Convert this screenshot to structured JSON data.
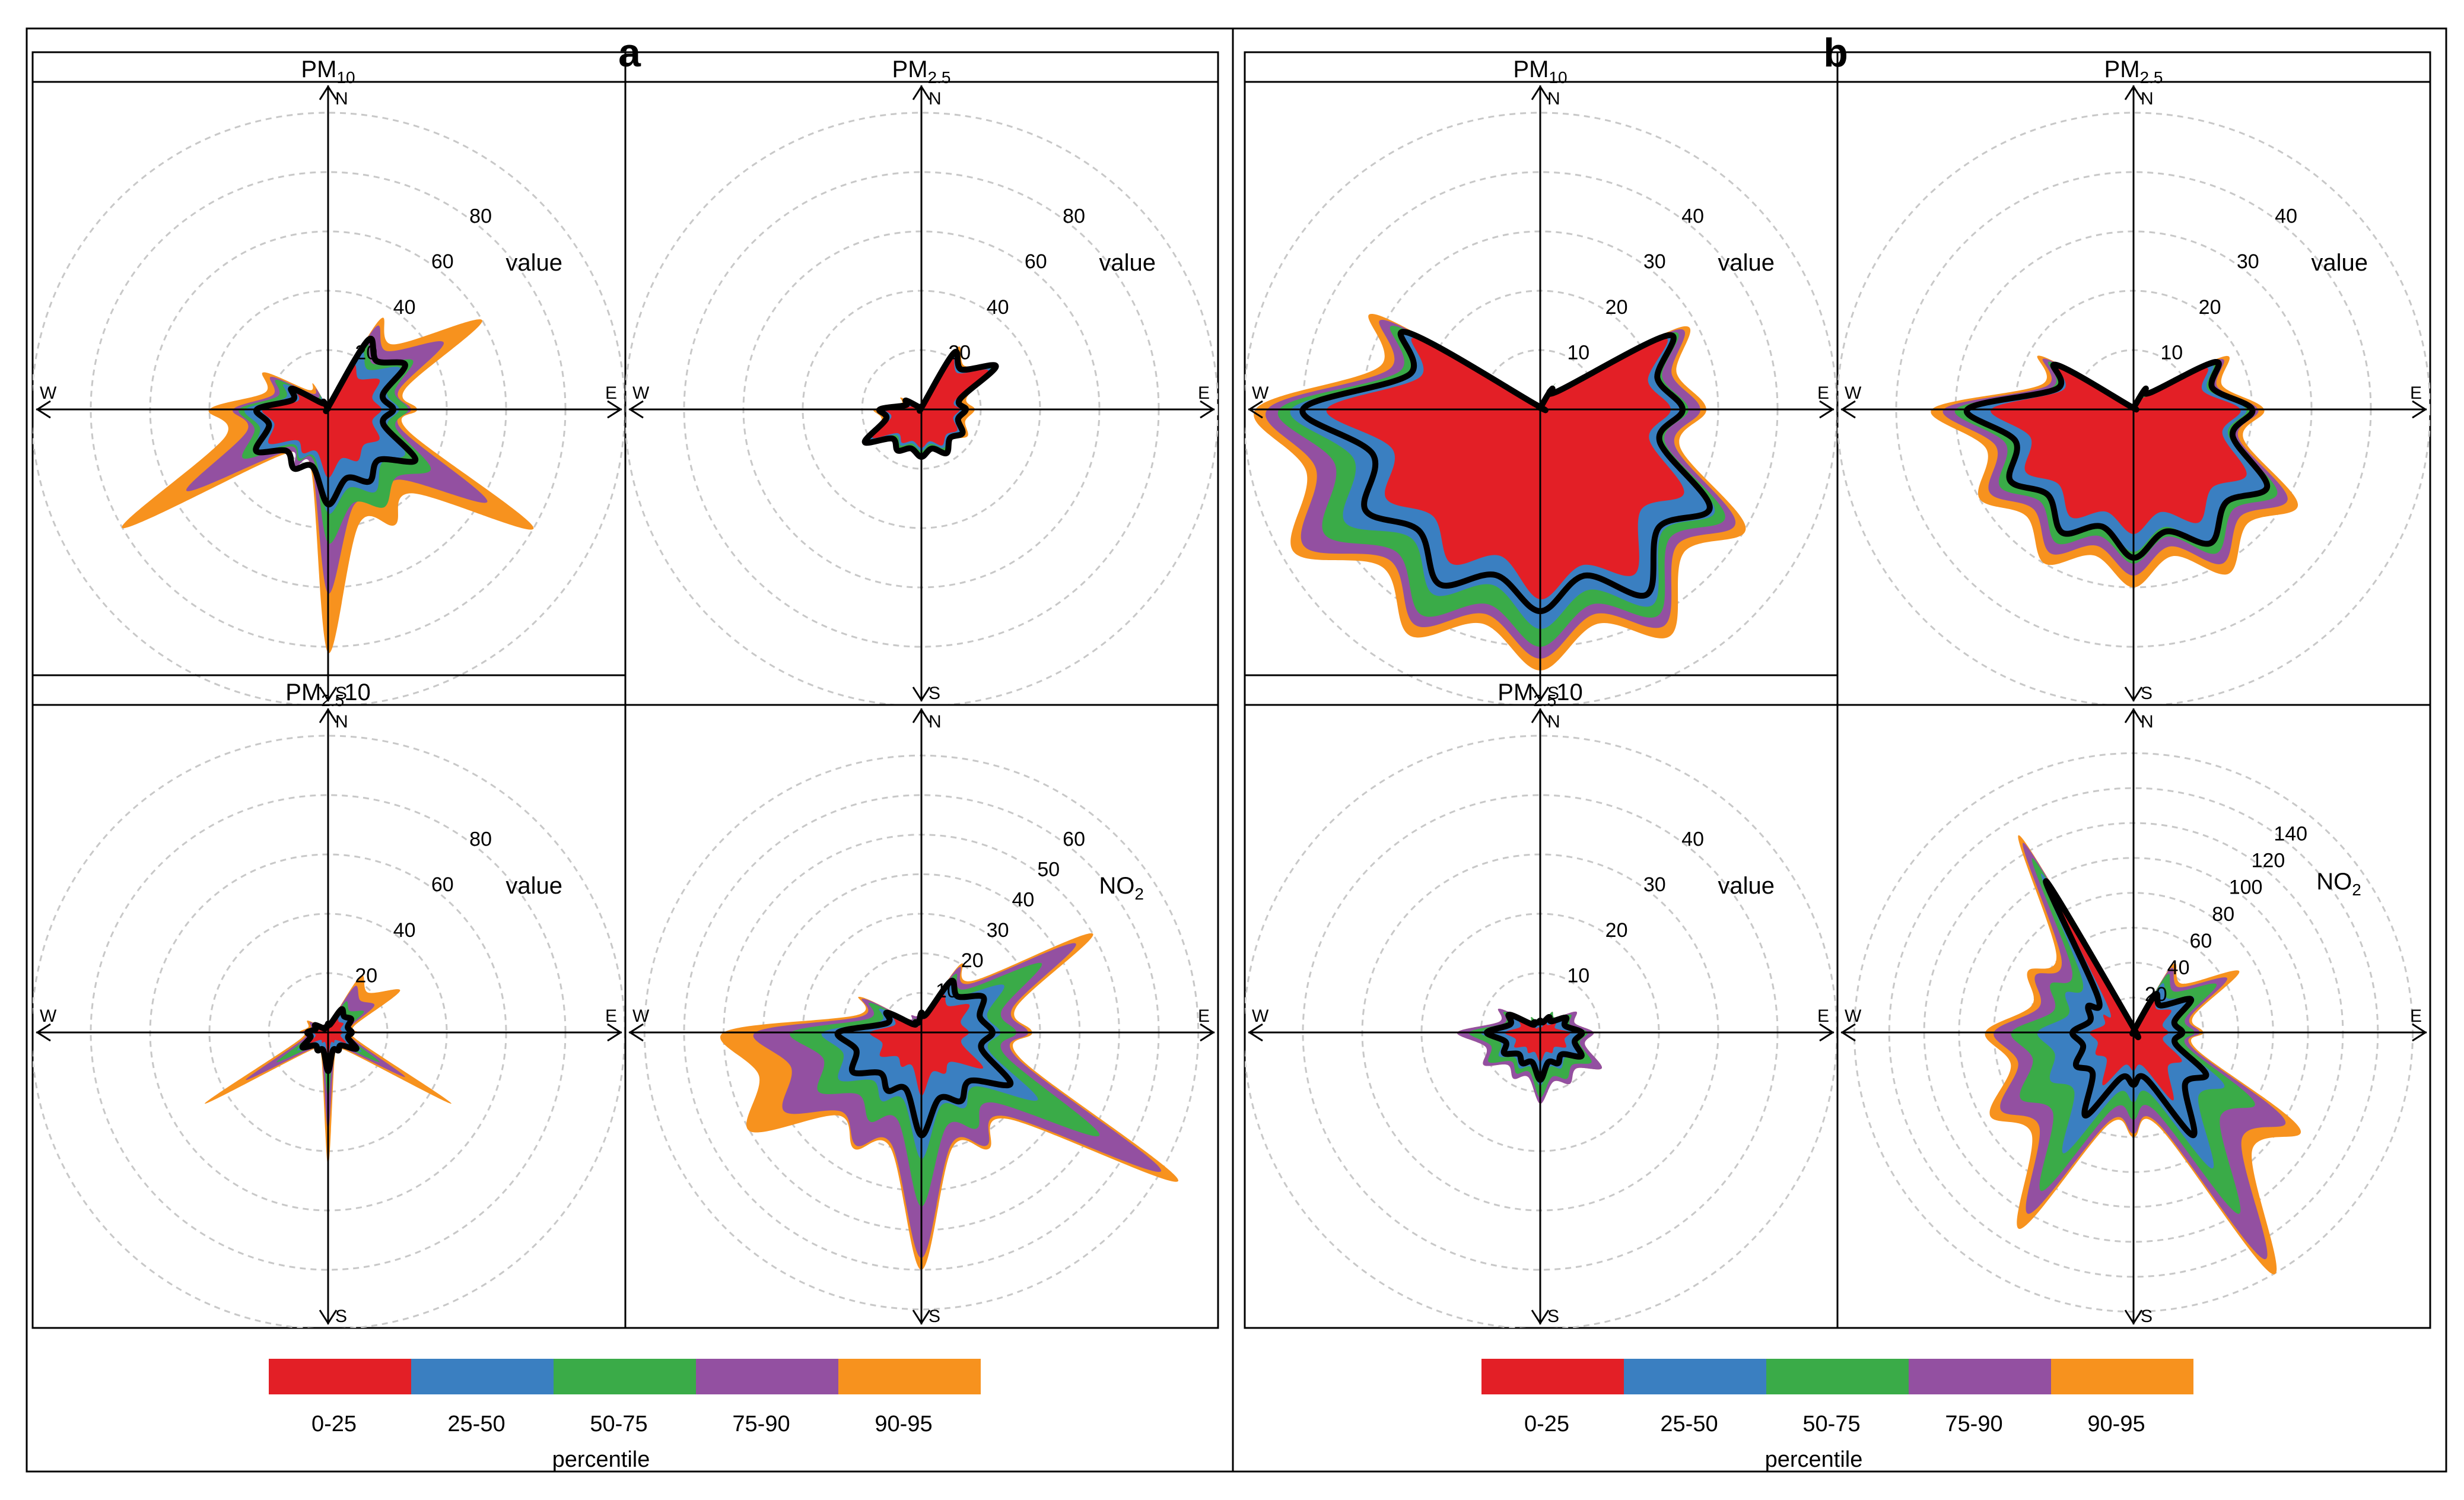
{
  "figure": {
    "panels": [
      {
        "label": "a"
      },
      {
        "label": "b"
      }
    ],
    "legend": {
      "title": "percentile",
      "items": [
        {
          "label": "0-25",
          "color": "#e31f26"
        },
        {
          "label": "25-50",
          "color": "#3a7fc1"
        },
        {
          "label": "50-75",
          "color": "#3aab48"
        },
        {
          "label": "75-90",
          "color": "#9350a1"
        },
        {
          "label": "90-95",
          "color": "#f7921e"
        }
      ]
    },
    "compass": {
      "N": "N",
      "E": "E",
      "S": "S",
      "W": "W"
    },
    "median_line_color": "#000000"
  },
  "chart_data": [
    {
      "type": "polar-percentile-rose",
      "panel": "a",
      "title_main": "PM",
      "title_sub": "10",
      "title_suffix": "",
      "radius_max": 100,
      "rings": [
        20,
        40,
        60,
        80,
        100
      ],
      "ring_labels": [
        "20",
        "40",
        "60",
        "80"
      ],
      "value_label": "value",
      "directions_deg": [
        0,
        30,
        60,
        90,
        120,
        150,
        180,
        210,
        240,
        270,
        300,
        330
      ],
      "bands": {
        "p95": [
          0,
          35,
          60,
          30,
          80,
          45,
          82,
          22,
          80,
          40,
          25,
          10
        ],
        "p90": [
          0,
          32,
          45,
          28,
          62,
          38,
          62,
          22,
          55,
          32,
          22,
          8
        ],
        "p75": [
          0,
          25,
          33,
          27,
          40,
          38,
          45,
          20,
          33,
          30,
          20,
          6
        ],
        "p50": [
          0,
          22,
          28,
          24,
          30,
          32,
          35,
          19,
          28,
          28,
          17,
          5
        ],
        "p25": [
          0,
          17,
          20,
          18,
          20,
          20,
          23,
          17,
          23,
          22,
          12,
          3
        ]
      },
      "median": [
        0,
        27,
        30,
        22,
        34,
        28,
        32,
        23,
        28,
        24,
        14,
        3
      ]
    },
    {
      "type": "polar-percentile-rose",
      "panel": "a",
      "title_main": "PM",
      "title_sub": "2.5",
      "title_suffix": "",
      "radius_max": 100,
      "rings": [
        20,
        40,
        60,
        80,
        100
      ],
      "ring_labels": [
        "20",
        "40",
        "60",
        "80"
      ],
      "value_label": "value",
      "directions_deg": [
        0,
        30,
        60,
        90,
        120,
        150,
        180,
        210,
        240,
        270,
        300,
        330
      ],
      "bands": {
        "p95": [
          0,
          24,
          30,
          18,
          18,
          17,
          17,
          17,
          23,
          16,
          8,
          2
        ],
        "p90": [
          0,
          23,
          29,
          16,
          17,
          17,
          16,
          16,
          22,
          15,
          7,
          2
        ],
        "p75": [
          0,
          22,
          28,
          15,
          16,
          16,
          15,
          15,
          21,
          14,
          6,
          1
        ],
        "p50": [
          0,
          21,
          27,
          14,
          15,
          15,
          14,
          14,
          20,
          13,
          5,
          1
        ],
        "p25": [
          0,
          20,
          26,
          13,
          14,
          14,
          13,
          13,
          19,
          12,
          4,
          1
        ]
      },
      "median": [
        0,
        22,
        29,
        15,
        16,
        17,
        16,
        16,
        22,
        14,
        6,
        1
      ]
    },
    {
      "type": "polar-percentile-rose",
      "panel": "a",
      "title_main": "PM",
      "title_sub": "2.5",
      "title_suffix": "10",
      "radius_max": 100,
      "rings": [
        20,
        40,
        60,
        80,
        100
      ],
      "ring_labels": [
        "20",
        "40",
        "60",
        "80"
      ],
      "value_label": "value",
      "directions_deg": [
        0,
        30,
        60,
        90,
        120,
        150,
        180,
        210,
        240,
        270,
        300,
        330
      ],
      "bands": {
        "p95": [
          4,
          22,
          28,
          10,
          48,
          8,
          45,
          8,
          48,
          10,
          8,
          3
        ],
        "p90": [
          4,
          18,
          18,
          9,
          30,
          8,
          33,
          8,
          32,
          9,
          7,
          3
        ],
        "p75": [
          3,
          12,
          14,
          8,
          20,
          7,
          22,
          7,
          20,
          8,
          6,
          2
        ],
        "p50": [
          3,
          9,
          10,
          7,
          13,
          6,
          15,
          6,
          12,
          7,
          5,
          2
        ],
        "p25": [
          2,
          6,
          6,
          5,
          7,
          4,
          8,
          4,
          7,
          5,
          4,
          1
        ]
      },
      "median": [
        3,
        9,
        9,
        8,
        11,
        7,
        13,
        7,
        10,
        7,
        5,
        2
      ]
    },
    {
      "type": "polar-percentile-rose",
      "panel": "a",
      "title_main": "",
      "title_sub": "",
      "title_suffix": "",
      "radius_max": 75,
      "rings": [
        10,
        20,
        30,
        40,
        50,
        60,
        70
      ],
      "ring_labels": [
        "10",
        "20",
        "30",
        "40",
        "50",
        "60"
      ],
      "value_label": "NO2",
      "directions_deg": [
        0,
        30,
        60,
        90,
        120,
        150,
        180,
        210,
        240,
        270,
        300,
        330
      ],
      "bands": {
        "p95": [
          6,
          20,
          50,
          28,
          75,
          34,
          60,
          34,
          50,
          50,
          18,
          5
        ],
        "p90": [
          6,
          19,
          45,
          27,
          70,
          33,
          57,
          33,
          40,
          42,
          17,
          5
        ],
        "p75": [
          5,
          17,
          35,
          24,
          52,
          28,
          44,
          26,
          30,
          33,
          15,
          4
        ],
        "p50": [
          5,
          15,
          24,
          20,
          34,
          22,
          32,
          20,
          24,
          25,
          12,
          3
        ],
        "p25": [
          4,
          11,
          14,
          12,
          18,
          12,
          16,
          10,
          12,
          13,
          8,
          2
        ]
      },
      "median": [
        5,
        15,
        18,
        18,
        26,
        20,
        26,
        17,
        20,
        21,
        10,
        3
      ]
    },
    {
      "type": "polar-percentile-rose",
      "panel": "b",
      "title_main": "PM",
      "title_sub": "10",
      "title_suffix": "",
      "radius_max": 50,
      "rings": [
        10,
        20,
        30,
        40,
        50
      ],
      "ring_labels": [
        "10",
        "20",
        "30",
        "40"
      ],
      "value_label": "value",
      "directions_deg": [
        0,
        30,
        60,
        90,
        120,
        150,
        180,
        210,
        240,
        270,
        300,
        330
      ],
      "bands": {
        "p95": [
          0,
          5,
          28,
          28,
          40,
          44,
          44,
          44,
          48,
          48,
          32,
          0
        ],
        "p90": [
          0,
          5,
          27,
          27,
          38,
          42,
          42,
          42,
          46,
          46,
          30,
          0
        ],
        "p75": [
          0,
          5,
          26,
          25,
          36,
          40,
          40,
          40,
          42,
          44,
          28,
          0
        ],
        "p50": [
          0,
          4,
          25,
          24,
          34,
          38,
          37,
          36,
          38,
          42,
          26,
          0
        ],
        "p25": [
          0,
          3,
          24,
          22,
          28,
          32,
          32,
          30,
          30,
          36,
          24,
          0
        ]
      },
      "median": [
        0,
        4,
        25,
        24,
        33,
        36,
        34,
        34,
        34,
        40,
        26,
        0
      ]
    },
    {
      "type": "polar-percentile-rose",
      "panel": "b",
      "title_main": "PM",
      "title_sub": "2.5",
      "title_suffix": "",
      "radius_max": 50,
      "rings": [
        10,
        20,
        30,
        40,
        50
      ],
      "ring_labels": [
        "10",
        "20",
        "30",
        "40"
      ],
      "value_label": "value",
      "directions_deg": [
        0,
        30,
        60,
        90,
        120,
        150,
        180,
        210,
        240,
        270,
        300,
        330
      ],
      "bands": {
        "p95": [
          0,
          4,
          18,
          22,
          32,
          32,
          30,
          30,
          30,
          34,
          18,
          0
        ],
        "p90": [
          0,
          4,
          17,
          21,
          30,
          30,
          28,
          28,
          28,
          32,
          17,
          0
        ],
        "p75": [
          0,
          4,
          16,
          20,
          28,
          28,
          26,
          26,
          26,
          30,
          16,
          0
        ],
        "p50": [
          0,
          3,
          15,
          19,
          26,
          26,
          24,
          24,
          24,
          28,
          15,
          0
        ],
        "p25": [
          0,
          3,
          14,
          18,
          22,
          22,
          21,
          21,
          21,
          24,
          14,
          0
        ]
      },
      "median": [
        0,
        4,
        16,
        20,
        26,
        26,
        25,
        24,
        24,
        28,
        15,
        0
      ]
    },
    {
      "type": "polar-percentile-rose",
      "panel": "b",
      "title_main": "PM",
      "title_sub": "2.5",
      "title_suffix": "10",
      "radius_max": 50,
      "rings": [
        10,
        20,
        30,
        40,
        50
      ],
      "ring_labels": [
        "10",
        "20",
        "30",
        "40"
      ],
      "value_label": "value",
      "directions_deg": [
        0,
        30,
        60,
        90,
        120,
        150,
        180,
        210,
        240,
        270,
        300,
        330
      ],
      "bands": {
        "p95": [
          2,
          4,
          7,
          9,
          12,
          10,
          12,
          9,
          11,
          14,
          8,
          3
        ],
        "p90": [
          2,
          4,
          7,
          9,
          12,
          10,
          12,
          9,
          11,
          14,
          8,
          3
        ],
        "p75": [
          2,
          4,
          6,
          8,
          10,
          9,
          11,
          8,
          10,
          12,
          7,
          3
        ],
        "p50": [
          2,
          3,
          5,
          7,
          8,
          7,
          9,
          7,
          8,
          10,
          6,
          2
        ],
        "p25": [
          1,
          2,
          3,
          5,
          5,
          4,
          5,
          4,
          5,
          6,
          4,
          1
        ]
      },
      "median": [
        2,
        3,
        5,
        7,
        8,
        6,
        8,
        6,
        7,
        9,
        6,
        2
      ]
    },
    {
      "type": "polar-percentile-rose",
      "panel": "b",
      "title_main": "",
      "title_sub": "",
      "title_suffix": "",
      "radius_max": 170,
      "rings": [
        20,
        40,
        60,
        80,
        100,
        120,
        140,
        160
      ],
      "ring_labels": [
        "20",
        "40",
        "60",
        "80",
        "100",
        "120",
        "140"
      ],
      "value_label": "NO2",
      "directions_deg": [
        0,
        30,
        60,
        90,
        120,
        150,
        180,
        210,
        240,
        270,
        300,
        330
      ],
      "bands": {
        "p95": [
          0,
          45,
          70,
          40,
          110,
          160,
          60,
          130,
          95,
          85,
          70,
          130
        ],
        "p90": [
          0,
          42,
          62,
          38,
          100,
          150,
          58,
          120,
          88,
          80,
          65,
          125
        ],
        "p75": [
          0,
          38,
          55,
          35,
          80,
          120,
          50,
          105,
          75,
          70,
          55,
          115
        ],
        "p50": [
          0,
          32,
          40,
          30,
          60,
          90,
          40,
          80,
          55,
          55,
          45,
          105
        ],
        "p25": [
          0,
          22,
          25,
          20,
          32,
          45,
          22,
          35,
          25,
          25,
          20,
          90
        ]
      },
      "median": [
        0,
        25,
        38,
        28,
        48,
        68,
        30,
        55,
        38,
        35,
        30,
        100
      ]
    }
  ]
}
